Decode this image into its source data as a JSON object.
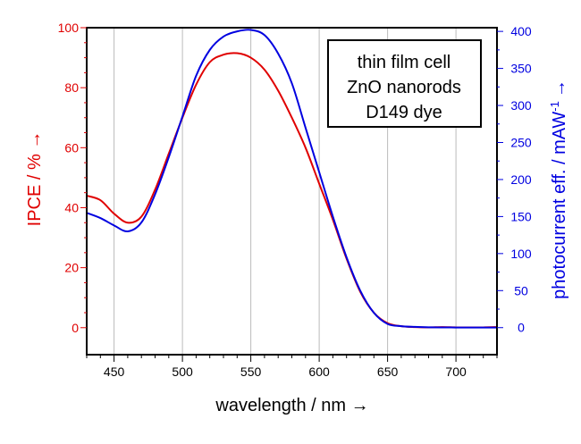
{
  "chart_data": {
    "type": "line",
    "xlabel": "wavelength / nm →",
    "ylabel_left": "IPCE / % →",
    "ylabel_right": "photocurrent eff. / mAW",
    "ylabel_right_sup": "-1",
    "ylabel_right_arrow": "→",
    "xlim": [
      430,
      730
    ],
    "ylim_left": [
      -9,
      100
    ],
    "ylim_right": [
      -36.5,
      405
    ],
    "x_ticks": [
      450,
      500,
      550,
      600,
      650,
      700
    ],
    "y_ticks_left": [
      0,
      20,
      40,
      60,
      80,
      100
    ],
    "y_ticks_right": [
      0,
      50,
      100,
      150,
      200,
      250,
      300,
      350,
      400
    ],
    "grid": "vertical",
    "annotation_box": [
      "thin film cell",
      "ZnO nanorods",
      "D149 dye"
    ],
    "colors": {
      "ipce": "#e00000",
      "photocurrent": "#0000e0",
      "axes": "#000000",
      "grid": "#bbbbbb"
    },
    "series": [
      {
        "axis": "left",
        "x": [
          430,
          440,
          450,
          460,
          470,
          480,
          490,
          500,
          510,
          520,
          530,
          540,
          550,
          560,
          570,
          580,
          590,
          600,
          610,
          620,
          630,
          640,
          650,
          660,
          670,
          680,
          690,
          700,
          710,
          720,
          730
        ],
        "y": [
          44,
          42.5,
          38,
          35,
          37,
          46,
          58,
          70,
          81,
          88.5,
          91,
          91.5,
          90,
          86,
          79,
          70,
          60,
          48,
          36,
          23,
          12,
          5,
          1.5,
          0.5,
          0.2,
          0.1,
          0.2,
          0.1,
          0.1,
          0.1,
          0.2
        ]
      },
      {
        "axis": "right",
        "x": [
          430,
          440,
          450,
          460,
          470,
          480,
          490,
          500,
          510,
          520,
          530,
          540,
          550,
          560,
          570,
          580,
          590,
          600,
          610,
          620,
          630,
          640,
          650,
          660,
          670,
          680,
          690,
          700,
          710,
          720,
          730
        ],
        "y": [
          155,
          148,
          138,
          130,
          142,
          180,
          230,
          285,
          340,
          375,
          393,
          400,
          402,
          395,
          370,
          330,
          270,
          210,
          150,
          95,
          50,
          20,
          5,
          2,
          1,
          0.5,
          0.3,
          0.2,
          0.1,
          0.1,
          0.1
        ]
      }
    ]
  }
}
